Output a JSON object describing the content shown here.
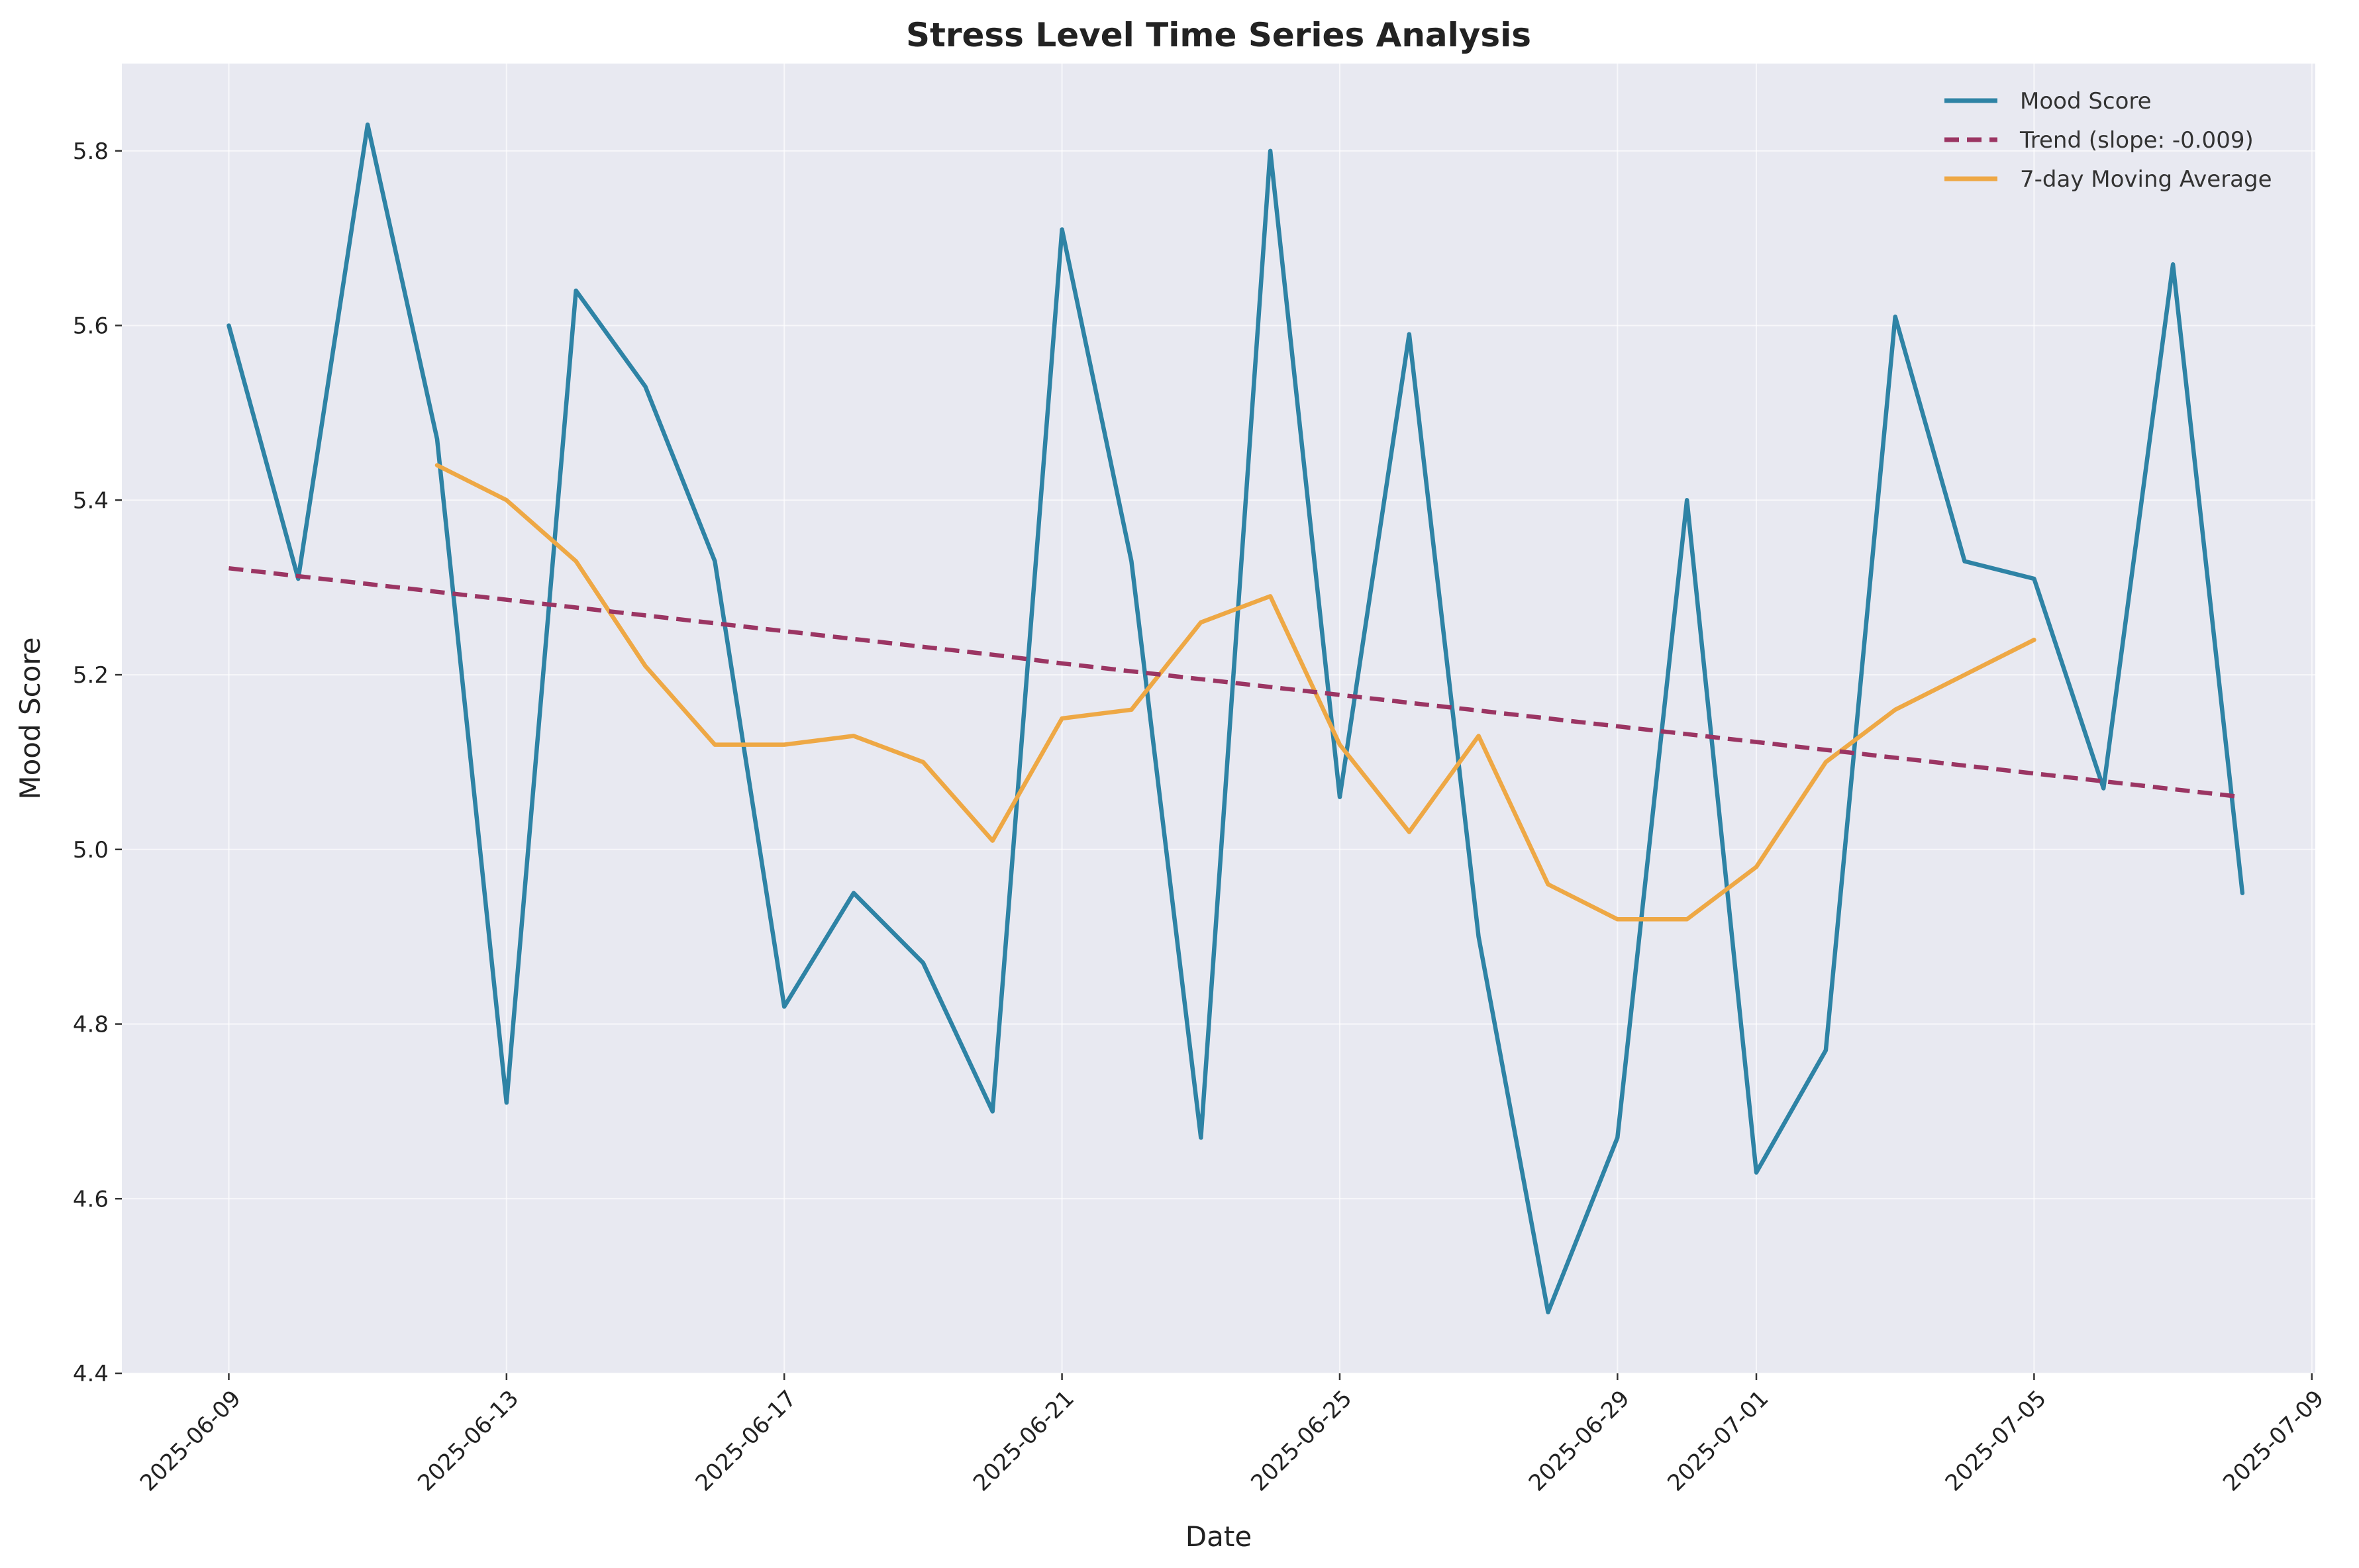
{
  "chart_data": {
    "type": "line",
    "title": "Stress Level Time Series Analysis",
    "xlabel": "Date",
    "ylabel": "Mood Score",
    "xlim": [
      "2025-06-08",
      "2025-07-09"
    ],
    "ylim": [
      4.4,
      5.9
    ],
    "x_ticks": [
      "2025-06-09",
      "2025-06-13",
      "2025-06-17",
      "2025-06-21",
      "2025-06-25",
      "2025-06-29",
      "2025-07-01",
      "2025-07-05",
      "2025-07-09"
    ],
    "y_ticks": [
      4.4,
      4.6,
      4.8,
      5.0,
      5.2,
      5.4,
      5.6,
      5.8
    ],
    "y_tick_labels": [
      "4.4",
      "4.6",
      "4.8",
      "5.0",
      "5.2",
      "5.4",
      "5.6",
      "5.8"
    ],
    "grid": true,
    "legend_position": "top-right",
    "x": [
      "2025-06-09",
      "2025-06-10",
      "2025-06-11",
      "2025-06-12",
      "2025-06-13",
      "2025-06-14",
      "2025-06-15",
      "2025-06-16",
      "2025-06-17",
      "2025-06-18",
      "2025-06-19",
      "2025-06-20",
      "2025-06-21",
      "2025-06-22",
      "2025-06-23",
      "2025-06-24",
      "2025-06-25",
      "2025-06-26",
      "2025-06-27",
      "2025-06-28",
      "2025-06-29",
      "2025-06-30",
      "2025-07-01",
      "2025-07-02",
      "2025-07-03",
      "2025-07-04",
      "2025-07-05",
      "2025-07-06",
      "2025-07-07",
      "2025-07-08"
    ],
    "series": [
      {
        "name": "Mood Score",
        "style": "solid",
        "color": "#2e83a5",
        "values": [
          5.6,
          5.31,
          5.83,
          5.47,
          4.71,
          5.64,
          5.53,
          5.33,
          4.82,
          4.95,
          4.87,
          4.7,
          5.71,
          5.33,
          4.67,
          5.8,
          5.06,
          5.59,
          4.9,
          4.47,
          4.67,
          5.4,
          4.63,
          4.77,
          5.61,
          5.33,
          5.31,
          5.07,
          5.67,
          4.95
        ]
      },
      {
        "name": "Trend (slope: -0.009)",
        "style": "dashed",
        "color": "#9b3563",
        "values": [
          5.322,
          5.313,
          5.304,
          5.295,
          5.286,
          5.277,
          5.268,
          5.259,
          5.25,
          5.241,
          5.232,
          5.223,
          5.213,
          5.204,
          5.195,
          5.186,
          5.177,
          5.168,
          5.159,
          5.15,
          5.141,
          5.132,
          5.123,
          5.114,
          5.105,
          5.096,
          5.087,
          5.078,
          5.069,
          5.06
        ]
      },
      {
        "name": "7-day Moving Average",
        "style": "solid",
        "color": "#eea845",
        "values": [
          null,
          null,
          null,
          5.44,
          5.4,
          5.33,
          5.21,
          5.12,
          5.12,
          5.13,
          5.1,
          5.01,
          5.15,
          5.16,
          5.26,
          5.29,
          5.12,
          5.02,
          5.13,
          4.96,
          4.92,
          4.92,
          4.98,
          5.1,
          5.16,
          5.2,
          5.24,
          null,
          null,
          null
        ]
      }
    ]
  }
}
